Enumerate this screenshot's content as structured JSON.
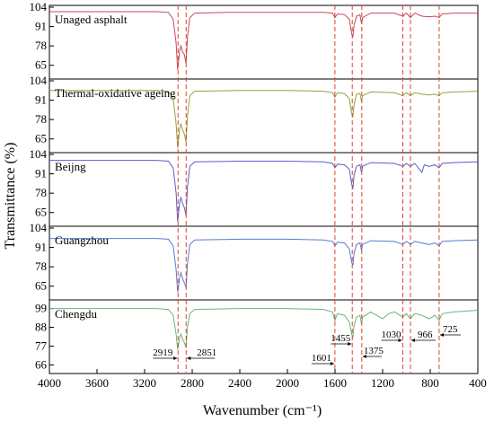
{
  "chart_data": {
    "type": "line",
    "xlabel": "Wavenumber (cm⁻¹)",
    "ylabel": "Transmittance (%)",
    "xlim": [
      4000,
      400
    ],
    "x_ticks": [
      4000,
      3600,
      3200,
      2800,
      2400,
      2000,
      1600,
      1200,
      800,
      400
    ],
    "reference_lines_x": [
      2919,
      2851,
      1601,
      1455,
      1375,
      1030,
      966,
      725
    ],
    "peak_annotations": [
      {
        "label": "2919",
        "x": 2919
      },
      {
        "label": "2851",
        "x": 2851
      },
      {
        "label": "1601",
        "x": 1601
      },
      {
        "label": "1455",
        "x": 1455
      },
      {
        "label": "1375",
        "x": 1375
      },
      {
        "label": "1030",
        "x": 1030
      },
      {
        "label": "966",
        "x": 966
      },
      {
        "label": "725",
        "x": 725
      }
    ],
    "panels": [
      {
        "name": "Unaged asphalt",
        "color": "#c8485a",
        "ylim": [
          57,
          104
        ],
        "y_ticks": [
          104,
          91,
          78,
          65
        ],
        "points": [
          [
            4000,
            101
          ],
          [
            3500,
            101
          ],
          [
            3100,
            101
          ],
          [
            3000,
            100.5
          ],
          [
            2960,
            96
          ],
          [
            2935,
            80
          ],
          [
            2922,
            62
          ],
          [
            2905,
            75
          ],
          [
            2895,
            78
          ],
          [
            2880,
            74
          ],
          [
            2865,
            72
          ],
          [
            2852,
            66
          ],
          [
            2840,
            84
          ],
          [
            2820,
            97
          ],
          [
            2780,
            100
          ],
          [
            2500,
            100.5
          ],
          [
            2000,
            100.5
          ],
          [
            1700,
            100.5
          ],
          [
            1620,
            100
          ],
          [
            1601,
            97
          ],
          [
            1580,
            99.5
          ],
          [
            1520,
            99
          ],
          [
            1480,
            96
          ],
          [
            1460,
            86
          ],
          [
            1450,
            84
          ],
          [
            1440,
            92
          ],
          [
            1420,
            98
          ],
          [
            1390,
            99
          ],
          [
            1377,
            93
          ],
          [
            1368,
            97
          ],
          [
            1300,
            100
          ],
          [
            1100,
            100
          ],
          [
            1030,
            98
          ],
          [
            1000,
            100
          ],
          [
            966,
            97
          ],
          [
            930,
            100
          ],
          [
            870,
            98
          ],
          [
            810,
            97.5
          ],
          [
            760,
            98
          ],
          [
            725,
            97
          ],
          [
            700,
            99.5
          ],
          [
            600,
            100
          ],
          [
            400,
            100
          ]
        ]
      },
      {
        "name": "Thermal-oxidative ageing",
        "color": "#8aa63c",
        "ylim": [
          57,
          104
        ],
        "y_ticks": [
          104,
          91,
          78,
          65
        ],
        "points": [
          [
            4000,
            97.5
          ],
          [
            3500,
            97.5
          ],
          [
            3100,
            97.5
          ],
          [
            3000,
            97
          ],
          [
            2960,
            92
          ],
          [
            2935,
            75
          ],
          [
            2922,
            59
          ],
          [
            2905,
            72
          ],
          [
            2895,
            75
          ],
          [
            2880,
            71
          ],
          [
            2865,
            68
          ],
          [
            2852,
            63
          ],
          [
            2840,
            80
          ],
          [
            2820,
            94
          ],
          [
            2780,
            97
          ],
          [
            2400,
            97.5
          ],
          [
            2000,
            97.5
          ],
          [
            1700,
            97
          ],
          [
            1620,
            96
          ],
          [
            1601,
            93
          ],
          [
            1580,
            96
          ],
          [
            1520,
            95.5
          ],
          [
            1480,
            92
          ],
          [
            1460,
            82
          ],
          [
            1450,
            80
          ],
          [
            1440,
            88
          ],
          [
            1420,
            95
          ],
          [
            1390,
            95.5
          ],
          [
            1377,
            90
          ],
          [
            1368,
            94
          ],
          [
            1300,
            96.5
          ],
          [
            1100,
            96
          ],
          [
            1030,
            94
          ],
          [
            1000,
            96
          ],
          [
            966,
            94
          ],
          [
            930,
            96
          ],
          [
            870,
            95
          ],
          [
            810,
            94.5
          ],
          [
            760,
            95
          ],
          [
            725,
            94
          ],
          [
            700,
            96
          ],
          [
            600,
            96.5
          ],
          [
            400,
            97
          ]
        ]
      },
      {
        "name": "Beijng",
        "color": "#5a5ec8",
        "ylim": [
          57,
          104
        ],
        "y_ticks": [
          104,
          91,
          78,
          65
        ],
        "points": [
          [
            4000,
            100
          ],
          [
            3500,
            100
          ],
          [
            3100,
            100
          ],
          [
            3000,
            99.5
          ],
          [
            2960,
            95
          ],
          [
            2935,
            78
          ],
          [
            2922,
            59
          ],
          [
            2905,
            72
          ],
          [
            2895,
            75
          ],
          [
            2880,
            71
          ],
          [
            2865,
            68
          ],
          [
            2852,
            63
          ],
          [
            2840,
            82
          ],
          [
            2820,
            96
          ],
          [
            2780,
            99
          ],
          [
            2400,
            99.5
          ],
          [
            2000,
            99.5
          ],
          [
            1700,
            99
          ],
          [
            1620,
            98
          ],
          [
            1601,
            95
          ],
          [
            1580,
            97.5
          ],
          [
            1520,
            97
          ],
          [
            1480,
            94
          ],
          [
            1460,
            84
          ],
          [
            1450,
            81
          ],
          [
            1440,
            90
          ],
          [
            1420,
            96
          ],
          [
            1390,
            97
          ],
          [
            1377,
            92
          ],
          [
            1368,
            96
          ],
          [
            1300,
            98.5
          ],
          [
            1100,
            98
          ],
          [
            1030,
            96
          ],
          [
            1000,
            98
          ],
          [
            966,
            96
          ],
          [
            930,
            98
          ],
          [
            870,
            92
          ],
          [
            850,
            97
          ],
          [
            810,
            96
          ],
          [
            760,
            97
          ],
          [
            725,
            95
          ],
          [
            700,
            98
          ],
          [
            600,
            98.5
          ],
          [
            400,
            99
          ]
        ]
      },
      {
        "name": "Guangzhou",
        "color": "#5a7ad2",
        "ylim": [
          57,
          104
        ],
        "y_ticks": [
          104,
          91,
          78,
          65
        ],
        "points": [
          [
            4000,
            97
          ],
          [
            3500,
            97
          ],
          [
            3100,
            97
          ],
          [
            3000,
            96.5
          ],
          [
            2960,
            92
          ],
          [
            2935,
            76
          ],
          [
            2922,
            61
          ],
          [
            2905,
            71
          ],
          [
            2895,
            74
          ],
          [
            2880,
            70
          ],
          [
            2865,
            67
          ],
          [
            2852,
            64
          ],
          [
            2840,
            80
          ],
          [
            2820,
            93
          ],
          [
            2780,
            96
          ],
          [
            2400,
            96.5
          ],
          [
            2000,
            96.5
          ],
          [
            1700,
            96
          ],
          [
            1620,
            95
          ],
          [
            1601,
            92
          ],
          [
            1580,
            94.5
          ],
          [
            1520,
            94
          ],
          [
            1480,
            90
          ],
          [
            1460,
            81
          ],
          [
            1450,
            79
          ],
          [
            1440,
            87
          ],
          [
            1420,
            93
          ],
          [
            1390,
            94
          ],
          [
            1377,
            89
          ],
          [
            1368,
            93
          ],
          [
            1300,
            95.5
          ],
          [
            1100,
            95
          ],
          [
            1030,
            93
          ],
          [
            1000,
            95
          ],
          [
            966,
            93
          ],
          [
            930,
            95
          ],
          [
            870,
            94
          ],
          [
            810,
            93
          ],
          [
            760,
            94
          ],
          [
            725,
            92
          ],
          [
            700,
            95
          ],
          [
            600,
            95.5
          ],
          [
            400,
            96
          ]
        ]
      },
      {
        "name": "Chengdu",
        "color": "#6ab57a",
        "ylim": [
          62,
          103
        ],
        "y_ticks": [
          99,
          88,
          77,
          66
        ],
        "points": [
          [
            4000,
            99
          ],
          [
            3500,
            99
          ],
          [
            3100,
            99
          ],
          [
            3000,
            98.5
          ],
          [
            2960,
            95
          ],
          [
            2935,
            84
          ],
          [
            2922,
            75
          ],
          [
            2905,
            82
          ],
          [
            2895,
            84
          ],
          [
            2880,
            81
          ],
          [
            2865,
            79
          ],
          [
            2852,
            76
          ],
          [
            2840,
            88
          ],
          [
            2820,
            96
          ],
          [
            2780,
            98.5
          ],
          [
            2400,
            99
          ],
          [
            2000,
            99
          ],
          [
            1700,
            98.5
          ],
          [
            1620,
            97
          ],
          [
            1601,
            92
          ],
          [
            1580,
            96
          ],
          [
            1520,
            95
          ],
          [
            1480,
            91
          ],
          [
            1460,
            84
          ],
          [
            1450,
            82
          ],
          [
            1440,
            89
          ],
          [
            1420,
            94
          ],
          [
            1390,
            95
          ],
          [
            1377,
            90
          ],
          [
            1368,
            94
          ],
          [
            1300,
            97
          ],
          [
            1200,
            93
          ],
          [
            1150,
            96
          ],
          [
            1100,
            97
          ],
          [
            1030,
            94
          ],
          [
            1000,
            96
          ],
          [
            966,
            93
          ],
          [
            930,
            96
          ],
          [
            870,
            95
          ],
          [
            810,
            93
          ],
          [
            760,
            95
          ],
          [
            725,
            92
          ],
          [
            700,
            96
          ],
          [
            600,
            97
          ],
          [
            400,
            98
          ]
        ]
      }
    ]
  }
}
